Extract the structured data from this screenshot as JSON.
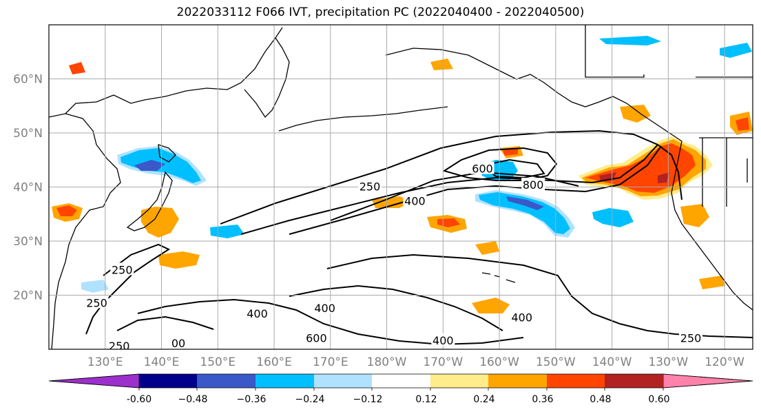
{
  "title": "2022033112 F066 IVT, precipitation PC (2022040400 - 2022040500)",
  "map": {
    "lon_range": [
      120,
      245
    ],
    "lat_range": [
      10,
      70
    ],
    "lat_labels": [
      "20°N",
      "30°N",
      "40°N",
      "50°N",
      "60°N"
    ],
    "lat_values": [
      20,
      30,
      40,
      50,
      60
    ],
    "lon_labels": [
      "130°E",
      "140°E",
      "150°E",
      "160°E",
      "170°E",
      "180°W",
      "170°W",
      "160°W",
      "150°W",
      "140°W",
      "130°W",
      "120°W"
    ],
    "lon_values": [
      130,
      140,
      150,
      160,
      170,
      180,
      190,
      200,
      210,
      220,
      230,
      240
    ],
    "grid": true
  },
  "colorbar": {
    "ticks": [
      "-0.60",
      "−0.48",
      "−0.36",
      "−0.24",
      "−0.12",
      "0.12",
      "0.24",
      "0.36",
      "0.48",
      "0.60"
    ],
    "colors": [
      "#9b30cc",
      "#00008b",
      "#3a58c8",
      "#00bfff",
      "#b0e2ff",
      "#ffffff",
      "#ffec8b",
      "#ffa500",
      "#ff4500",
      "#b22222",
      "#ff82ab"
    ],
    "extend": "both"
  },
  "contours": {
    "levels": [
      "250",
      "400",
      "600",
      "800"
    ],
    "labels": [
      {
        "text": "250",
        "lon": 177,
        "lat": 40.0
      },
      {
        "text": "400",
        "lon": 185,
        "lat": 37.3
      },
      {
        "text": "600",
        "lon": 197,
        "lat": 43.3
      },
      {
        "text": "800",
        "lon": 206,
        "lat": 40.3
      },
      {
        "text": "250",
        "lon": 133,
        "lat": 24.6
      },
      {
        "text": "250",
        "lon": 128.5,
        "lat": 18.5
      },
      {
        "text": "250",
        "lon": 132.5,
        "lat": 10.5
      },
      {
        "text": "400",
        "lon": 157,
        "lat": 16.5
      },
      {
        "text": "400",
        "lon": 169,
        "lat": 17.5
      },
      {
        "text": "600",
        "lon": 167.5,
        "lat": 12.0
      },
      {
        "text": "400",
        "lon": 190,
        "lat": 11.5
      },
      {
        "text": "400",
        "lon": 204,
        "lat": 15.8
      },
      {
        "text": "250",
        "lon": 234,
        "lat": 12.0
      },
      {
        "text": "00",
        "lon": 143,
        "lat": 11.0
      }
    ]
  }
}
